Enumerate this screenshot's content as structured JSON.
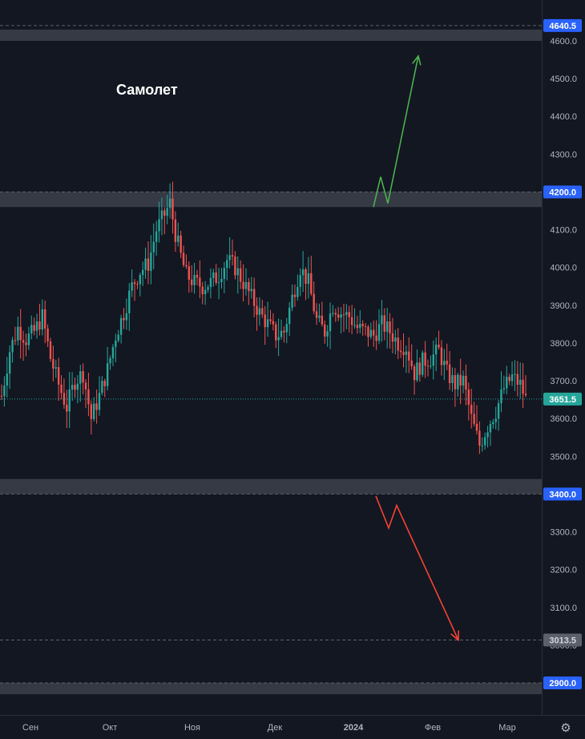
{
  "chart_data": {
    "type": "candlestick",
    "title": "Самолет",
    "y_axis": {
      "ticks": [
        "4600.0",
        "4500.0",
        "4400.0",
        "4300.0",
        "4200.0",
        "4100.0",
        "4000.0",
        "3900.0",
        "3800.0",
        "3700.0",
        "3600.0",
        "3500.0",
        "3400.0",
        "3300.0",
        "3200.0",
        "3100.0",
        "3000.0",
        "2900.0"
      ],
      "ylim": [
        2855,
        4700
      ],
      "position": "right"
    },
    "x_axis": {
      "ticks": [
        "Сен",
        "Окт",
        "Ноя",
        "Дек",
        "2024",
        "Фев",
        "Мар"
      ]
    },
    "current_price": {
      "value": 3651.5,
      "label": "3651.5",
      "color": "#26a69a"
    },
    "levels": [
      {
        "value": 4640.5,
        "label": "4640.5",
        "zone": [
          4600,
          4630
        ],
        "color": "#2962ff"
      },
      {
        "value": 4200.0,
        "label": "4200.0",
        "zone": [
          4160,
          4200
        ],
        "color": "#2962ff"
      },
      {
        "value": 3400.0,
        "label": "3400.0",
        "zone": [
          3400,
          3440
        ],
        "color": "#2962ff"
      },
      {
        "value": 3013.5,
        "label": "3013.5",
        "zone": null,
        "color": "#434651"
      },
      {
        "value": 2900.0,
        "label": "2900.0",
        "zone": [
          2870,
          2900
        ],
        "color": "#2962ff"
      }
    ],
    "scenarios": [
      {
        "direction": "up",
        "color": "#4caf50",
        "from": 4160,
        "to": 4560
      },
      {
        "direction": "down",
        "color": "#f44336",
        "from": 3395,
        "to": 3013.5
      }
    ],
    "price_path": [
      [
        0,
        3660
      ],
      [
        3,
        3780
      ],
      [
        6,
        3840
      ],
      [
        9,
        3810
      ],
      [
        12,
        3830
      ],
      [
        15,
        3870
      ],
      [
        18,
        3760
      ],
      [
        21,
        3690
      ],
      [
        24,
        3630
      ],
      [
        27,
        3700
      ],
      [
        30,
        3720
      ],
      [
        33,
        3600
      ],
      [
        36,
        3660
      ],
      [
        39,
        3730
      ],
      [
        42,
        3820
      ],
      [
        45,
        3880
      ],
      [
        48,
        3950
      ],
      [
        51,
        3990
      ],
      [
        54,
        4010
      ],
      [
        57,
        4100
      ],
      [
        60,
        4140
      ],
      [
        62,
        4170
      ],
      [
        64,
        4090
      ],
      [
        66,
        4030
      ],
      [
        68,
        3980
      ],
      [
        71,
        3960
      ],
      [
        74,
        3950
      ],
      [
        77,
        3960
      ],
      [
        80,
        3980
      ],
      [
        83,
        4020
      ],
      [
        86,
        4000
      ],
      [
        89,
        3960
      ],
      [
        92,
        3920
      ],
      [
        95,
        3880
      ],
      [
        98,
        3850
      ],
      [
        101,
        3820
      ],
      [
        104,
        3830
      ],
      [
        107,
        3920
      ],
      [
        110,
        4000
      ],
      [
        113,
        3960
      ],
      [
        116,
        3860
      ],
      [
        119,
        3830
      ],
      [
        122,
        3900
      ],
      [
        125,
        3880
      ],
      [
        128,
        3870
      ],
      [
        131,
        3840
      ],
      [
        134,
        3830
      ],
      [
        137,
        3820
      ],
      [
        140,
        3850
      ],
      [
        143,
        3830
      ],
      [
        146,
        3800
      ],
      [
        149,
        3790
      ],
      [
        152,
        3720
      ],
      [
        155,
        3750
      ],
      [
        158,
        3760
      ],
      [
        161,
        3780
      ],
      [
        164,
        3720
      ],
      [
        167,
        3690
      ],
      [
        170,
        3700
      ],
      [
        173,
        3600
      ],
      [
        176,
        3530
      ],
      [
        179,
        3580
      ],
      [
        182,
        3620
      ],
      [
        185,
        3680
      ],
      [
        188,
        3710
      ],
      [
        191,
        3690
      ],
      [
        193,
        3651.5
      ]
    ],
    "grid": false,
    "theme": "dark"
  }
}
